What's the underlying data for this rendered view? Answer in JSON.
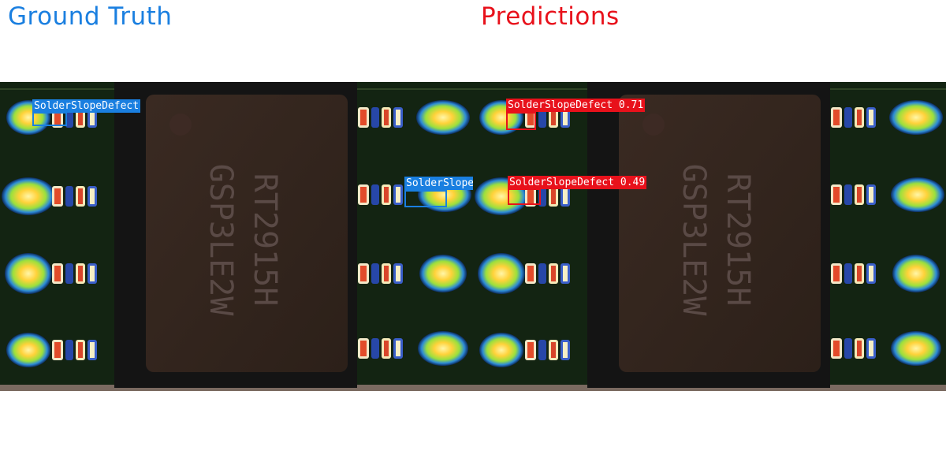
{
  "titles": {
    "ground_truth": "Ground Truth",
    "predictions": "Predictions"
  },
  "colors": {
    "ground_truth": "#1a7fe0",
    "predictions": "#e8111b"
  },
  "ground_truth": {
    "annotations": [
      {
        "label": "SolderSlopeDefect"
      },
      {
        "label": "SolderSlopeDefect"
      }
    ]
  },
  "predictions": {
    "detections": [
      {
        "label": "SolderSlopeDefect",
        "score": "0.71",
        "text": "SolderSlopeDefect 0.71"
      },
      {
        "label": "SolderSlopeDefect",
        "score": "0.49",
        "text": "SolderSlopeDefect 0.49"
      }
    ]
  },
  "chip_marking": [
    "RT2915H",
    "GSP3LE2W"
  ]
}
